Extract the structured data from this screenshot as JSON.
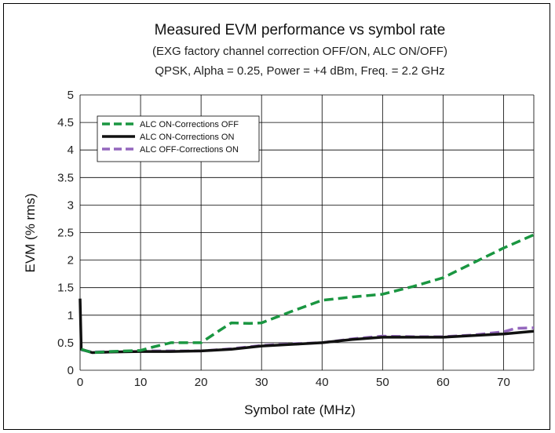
{
  "chart_data": {
    "type": "line",
    "title": "Measured EVM performance vs symbol rate",
    "subtitle_lines": [
      "(EXG factory channel correction OFF/ON, ALC ON/OFF)",
      "QPSK, Alpha = 0.25, Power = +4 dBm, Freq. = 2.2 GHz"
    ],
    "xlabel": "Symbol rate (MHz)",
    "ylabel": "EVM (% rms)",
    "xlim": [
      0,
      75
    ],
    "ylim": [
      0,
      5
    ],
    "x_ticks": [
      "0",
      "10",
      "20",
      "30",
      "40",
      "50",
      "60",
      "70"
    ],
    "y_ticks": [
      "0",
      "0.5",
      "1",
      "1.5",
      "2",
      "2.5",
      "3",
      "3.5",
      "4",
      "4.5",
      "5"
    ],
    "grid": true,
    "legend_position": "top-left",
    "series": [
      {
        "name": "ALC ON-Corrections OFF",
        "color": "#1a9641",
        "style": "dashed",
        "points": [
          [
            0.2,
            0.38
          ],
          [
            2,
            0.32
          ],
          [
            5,
            0.34
          ],
          [
            10,
            0.36
          ],
          [
            12,
            0.42
          ],
          [
            15,
            0.5
          ],
          [
            20,
            0.5
          ],
          [
            23,
            0.72
          ],
          [
            25,
            0.86
          ],
          [
            28,
            0.85
          ],
          [
            30,
            0.86
          ],
          [
            35,
            1.07
          ],
          [
            40,
            1.27
          ],
          [
            45,
            1.33
          ],
          [
            50,
            1.38
          ],
          [
            55,
            1.52
          ],
          [
            60,
            1.68
          ],
          [
            65,
            1.95
          ],
          [
            70,
            2.22
          ],
          [
            75,
            2.46
          ]
        ]
      },
      {
        "name": "ALC ON-Corrections ON",
        "color": "#111111",
        "style": "solid",
        "points": [
          [
            0,
            1.3
          ],
          [
            0.2,
            0.38
          ],
          [
            2,
            0.32
          ],
          [
            5,
            0.33
          ],
          [
            10,
            0.34
          ],
          [
            15,
            0.34
          ],
          [
            20,
            0.35
          ],
          [
            25,
            0.38
          ],
          [
            30,
            0.44
          ],
          [
            35,
            0.47
          ],
          [
            40,
            0.5
          ],
          [
            45,
            0.56
          ],
          [
            50,
            0.6
          ],
          [
            55,
            0.6
          ],
          [
            60,
            0.6
          ],
          [
            65,
            0.63
          ],
          [
            70,
            0.66
          ],
          [
            75,
            0.71
          ]
        ]
      },
      {
        "name": "ALC OFF-Corrections ON",
        "color": "#9467bd",
        "style": "dashed",
        "points": [
          [
            0.2,
            0.37
          ],
          [
            2,
            0.33
          ],
          [
            5,
            0.34
          ],
          [
            10,
            0.35
          ],
          [
            15,
            0.35
          ],
          [
            20,
            0.35
          ],
          [
            25,
            0.39
          ],
          [
            30,
            0.45
          ],
          [
            35,
            0.48
          ],
          [
            40,
            0.5
          ],
          [
            45,
            0.57
          ],
          [
            50,
            0.62
          ],
          [
            55,
            0.61
          ],
          [
            60,
            0.61
          ],
          [
            65,
            0.64
          ],
          [
            70,
            0.7
          ],
          [
            72,
            0.76
          ],
          [
            75,
            0.77
          ]
        ]
      }
    ]
  }
}
